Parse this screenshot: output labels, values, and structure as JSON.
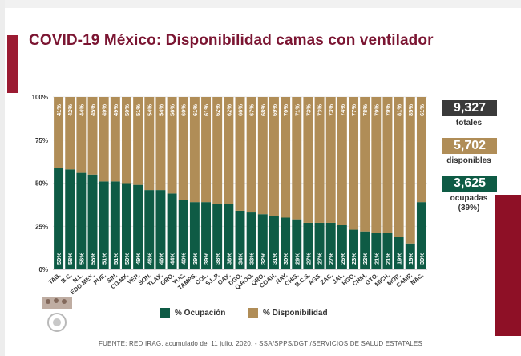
{
  "title": "COVID-19 México: Disponibilidad camas con ventilador",
  "stats": {
    "total_value": "9,327",
    "total_label": "totales",
    "total_color": "#3a3a3a",
    "available_value": "5,702",
    "available_label": "disponibles",
    "available_color": "#b08d57",
    "occupied_value": "3,625",
    "occupied_label": "ocupadas",
    "occupied_pct": "(39%)",
    "occupied_color": "#0e5b45"
  },
  "legend": {
    "occupancy": "% Ocupación",
    "availability": "% Disponibilidad"
  },
  "footer": "FUENTE: RED IRAG, acumulado del 11 julio, 2020. -  SSA/SPPS/DGTI/SERVICIOS DE SALUD ESTATALES",
  "logo_icon": "mexican-emblem-icon",
  "chart_data": {
    "type": "bar",
    "stacked": true,
    "percent": true,
    "title": "COVID-19 México: Disponibilidad camas con ventilador",
    "xlabel": "",
    "ylabel": "",
    "ylim": [
      0,
      100
    ],
    "yticks": [
      "0%",
      "25%",
      "50%",
      "75%",
      "100%"
    ],
    "categories": [
      "TAB.",
      "B.C.",
      "N.L.",
      "EDO.MEX.",
      "PUE.",
      "SIN.",
      "CD.MX.",
      "VER.",
      "SON.",
      "TLAX.",
      "GRO.",
      "YUC.",
      "TAMPS.",
      "COL.",
      "S.L.P.",
      "OAX.",
      "DGO.",
      "Q.ROO.",
      "QRO.",
      "COAH.",
      "NAY.",
      "CHIS.",
      "B.C.S.",
      "AGS.",
      "ZAC.",
      "JAL.",
      "HGO.",
      "CHIH.",
      "GTO.",
      "MICH.",
      "MOR.",
      "CAMP.",
      "NAC."
    ],
    "series": [
      {
        "name": "% Ocupación",
        "color": "#0e5b45",
        "values": [
          59,
          58,
          56,
          55,
          51,
          51,
          50,
          49,
          46,
          46,
          44,
          40,
          39,
          39,
          38,
          38,
          34,
          33,
          32,
          31,
          30,
          29,
          27,
          27,
          27,
          26,
          23,
          22,
          21,
          21,
          19,
          15,
          39
        ]
      },
      {
        "name": "% Disponibilidad",
        "color": "#b08d57",
        "values": [
          41,
          42,
          44,
          45,
          49,
          49,
          50,
          51,
          54,
          54,
          56,
          60,
          61,
          61,
          62,
          62,
          66,
          67,
          68,
          69,
          70,
          71,
          73,
          73,
          73,
          74,
          77,
          78,
          79,
          79,
          81,
          85,
          61
        ]
      }
    ],
    "value_labels": {
      "occupancy": [
        "59%",
        "58%",
        "56%",
        "55%",
        "51%",
        "51%",
        "50%",
        "49%",
        "46%",
        "46%",
        "44%",
        "40%",
        "39%",
        "39%",
        "38%",
        "38%",
        "34%",
        "33%",
        "32%",
        "31%",
        "30%",
        "29%",
        "27%",
        "27%",
        "27%",
        "26%",
        "23%",
        "22%",
        "21%",
        "21%",
        "19%",
        "15%",
        "39%"
      ],
      "availability": [
        "41%",
        "42%",
        "44%",
        "45%",
        "49%",
        "49%",
        "50%",
        "51%",
        "54%",
        "54%",
        "56%",
        "60%",
        "61%",
        "61%",
        "62%",
        "62%",
        "66%",
        "67%",
        "68%",
        "69%",
        "70%",
        "71%",
        "73%",
        "73%",
        "73%",
        "74%",
        "77%",
        "78%",
        "79%",
        "79%",
        "81%",
        "85%",
        "61%"
      ]
    },
    "legend_position": "bottom"
  }
}
